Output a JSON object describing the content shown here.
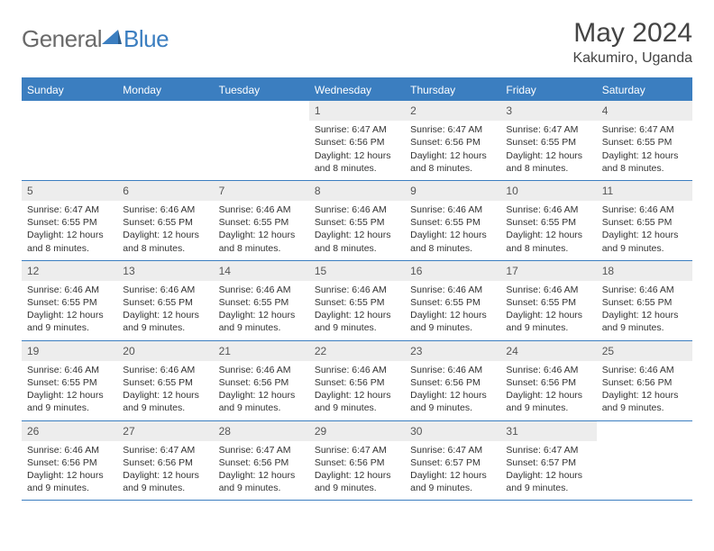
{
  "logo": {
    "text1": "General",
    "text2": "Blue"
  },
  "colors": {
    "brand": "#3b7ec0",
    "header_bg": "#3b7ec0",
    "num_bg": "#ededed",
    "text": "#333333"
  },
  "title": "May 2024",
  "location": "Kakumiro, Uganda",
  "day_names": [
    "Sunday",
    "Monday",
    "Tuesday",
    "Wednesday",
    "Thursday",
    "Friday",
    "Saturday"
  ],
  "weeks": [
    [
      {
        "n": "",
        "sr": "",
        "ss": "",
        "dl": ""
      },
      {
        "n": "",
        "sr": "",
        "ss": "",
        "dl": ""
      },
      {
        "n": "",
        "sr": "",
        "ss": "",
        "dl": ""
      },
      {
        "n": "1",
        "sr": "Sunrise: 6:47 AM",
        "ss": "Sunset: 6:56 PM",
        "dl": "Daylight: 12 hours and 8 minutes."
      },
      {
        "n": "2",
        "sr": "Sunrise: 6:47 AM",
        "ss": "Sunset: 6:56 PM",
        "dl": "Daylight: 12 hours and 8 minutes."
      },
      {
        "n": "3",
        "sr": "Sunrise: 6:47 AM",
        "ss": "Sunset: 6:55 PM",
        "dl": "Daylight: 12 hours and 8 minutes."
      },
      {
        "n": "4",
        "sr": "Sunrise: 6:47 AM",
        "ss": "Sunset: 6:55 PM",
        "dl": "Daylight: 12 hours and 8 minutes."
      }
    ],
    [
      {
        "n": "5",
        "sr": "Sunrise: 6:47 AM",
        "ss": "Sunset: 6:55 PM",
        "dl": "Daylight: 12 hours and 8 minutes."
      },
      {
        "n": "6",
        "sr": "Sunrise: 6:46 AM",
        "ss": "Sunset: 6:55 PM",
        "dl": "Daylight: 12 hours and 8 minutes."
      },
      {
        "n": "7",
        "sr": "Sunrise: 6:46 AM",
        "ss": "Sunset: 6:55 PM",
        "dl": "Daylight: 12 hours and 8 minutes."
      },
      {
        "n": "8",
        "sr": "Sunrise: 6:46 AM",
        "ss": "Sunset: 6:55 PM",
        "dl": "Daylight: 12 hours and 8 minutes."
      },
      {
        "n": "9",
        "sr": "Sunrise: 6:46 AM",
        "ss": "Sunset: 6:55 PM",
        "dl": "Daylight: 12 hours and 8 minutes."
      },
      {
        "n": "10",
        "sr": "Sunrise: 6:46 AM",
        "ss": "Sunset: 6:55 PM",
        "dl": "Daylight: 12 hours and 8 minutes."
      },
      {
        "n": "11",
        "sr": "Sunrise: 6:46 AM",
        "ss": "Sunset: 6:55 PM",
        "dl": "Daylight: 12 hours and 9 minutes."
      }
    ],
    [
      {
        "n": "12",
        "sr": "Sunrise: 6:46 AM",
        "ss": "Sunset: 6:55 PM",
        "dl": "Daylight: 12 hours and 9 minutes."
      },
      {
        "n": "13",
        "sr": "Sunrise: 6:46 AM",
        "ss": "Sunset: 6:55 PM",
        "dl": "Daylight: 12 hours and 9 minutes."
      },
      {
        "n": "14",
        "sr": "Sunrise: 6:46 AM",
        "ss": "Sunset: 6:55 PM",
        "dl": "Daylight: 12 hours and 9 minutes."
      },
      {
        "n": "15",
        "sr": "Sunrise: 6:46 AM",
        "ss": "Sunset: 6:55 PM",
        "dl": "Daylight: 12 hours and 9 minutes."
      },
      {
        "n": "16",
        "sr": "Sunrise: 6:46 AM",
        "ss": "Sunset: 6:55 PM",
        "dl": "Daylight: 12 hours and 9 minutes."
      },
      {
        "n": "17",
        "sr": "Sunrise: 6:46 AM",
        "ss": "Sunset: 6:55 PM",
        "dl": "Daylight: 12 hours and 9 minutes."
      },
      {
        "n": "18",
        "sr": "Sunrise: 6:46 AM",
        "ss": "Sunset: 6:55 PM",
        "dl": "Daylight: 12 hours and 9 minutes."
      }
    ],
    [
      {
        "n": "19",
        "sr": "Sunrise: 6:46 AM",
        "ss": "Sunset: 6:55 PM",
        "dl": "Daylight: 12 hours and 9 minutes."
      },
      {
        "n": "20",
        "sr": "Sunrise: 6:46 AM",
        "ss": "Sunset: 6:55 PM",
        "dl": "Daylight: 12 hours and 9 minutes."
      },
      {
        "n": "21",
        "sr": "Sunrise: 6:46 AM",
        "ss": "Sunset: 6:56 PM",
        "dl": "Daylight: 12 hours and 9 minutes."
      },
      {
        "n": "22",
        "sr": "Sunrise: 6:46 AM",
        "ss": "Sunset: 6:56 PM",
        "dl": "Daylight: 12 hours and 9 minutes."
      },
      {
        "n": "23",
        "sr": "Sunrise: 6:46 AM",
        "ss": "Sunset: 6:56 PM",
        "dl": "Daylight: 12 hours and 9 minutes."
      },
      {
        "n": "24",
        "sr": "Sunrise: 6:46 AM",
        "ss": "Sunset: 6:56 PM",
        "dl": "Daylight: 12 hours and 9 minutes."
      },
      {
        "n": "25",
        "sr": "Sunrise: 6:46 AM",
        "ss": "Sunset: 6:56 PM",
        "dl": "Daylight: 12 hours and 9 minutes."
      }
    ],
    [
      {
        "n": "26",
        "sr": "Sunrise: 6:46 AM",
        "ss": "Sunset: 6:56 PM",
        "dl": "Daylight: 12 hours and 9 minutes."
      },
      {
        "n": "27",
        "sr": "Sunrise: 6:47 AM",
        "ss": "Sunset: 6:56 PM",
        "dl": "Daylight: 12 hours and 9 minutes."
      },
      {
        "n": "28",
        "sr": "Sunrise: 6:47 AM",
        "ss": "Sunset: 6:56 PM",
        "dl": "Daylight: 12 hours and 9 minutes."
      },
      {
        "n": "29",
        "sr": "Sunrise: 6:47 AM",
        "ss": "Sunset: 6:56 PM",
        "dl": "Daylight: 12 hours and 9 minutes."
      },
      {
        "n": "30",
        "sr": "Sunrise: 6:47 AM",
        "ss": "Sunset: 6:57 PM",
        "dl": "Daylight: 12 hours and 9 minutes."
      },
      {
        "n": "31",
        "sr": "Sunrise: 6:47 AM",
        "ss": "Sunset: 6:57 PM",
        "dl": "Daylight: 12 hours and 9 minutes."
      },
      {
        "n": "",
        "sr": "",
        "ss": "",
        "dl": ""
      }
    ]
  ]
}
